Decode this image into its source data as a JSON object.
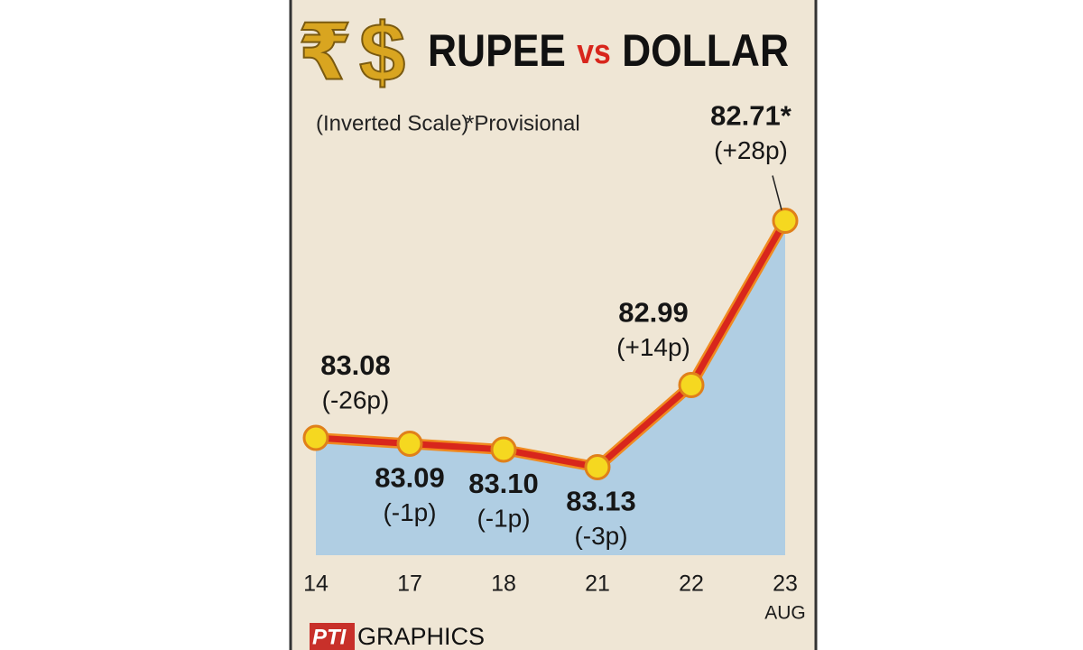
{
  "chart_data": {
    "type": "line",
    "symbols": [
      "₹",
      "$"
    ],
    "title": [
      "RUPEE",
      "vs",
      "DOLLAR"
    ],
    "note": "(Inverted Scale)",
    "footnote": "*Provisional",
    "categories": [
      "14",
      "17",
      "18",
      "21",
      "22",
      "23"
    ],
    "month": "AUG",
    "values": [
      83.08,
      83.09,
      83.1,
      83.13,
      82.99,
      82.71
    ],
    "value_labels": [
      "83.08",
      "83.09",
      "83.10",
      "83.13",
      "82.99",
      "82.71*"
    ],
    "change_labels": [
      "(-26p)",
      "(-1p)",
      "(-1p)",
      "(-3p)",
      "(+14p)",
      "(+28p)"
    ],
    "ylim": [
      83.28,
      82.58
    ],
    "color": "#d8261c",
    "marker_color": "#f5d820",
    "area_color": "#a9cbe4",
    "source_logo": "PTI",
    "source": "GRAPHICS"
  }
}
